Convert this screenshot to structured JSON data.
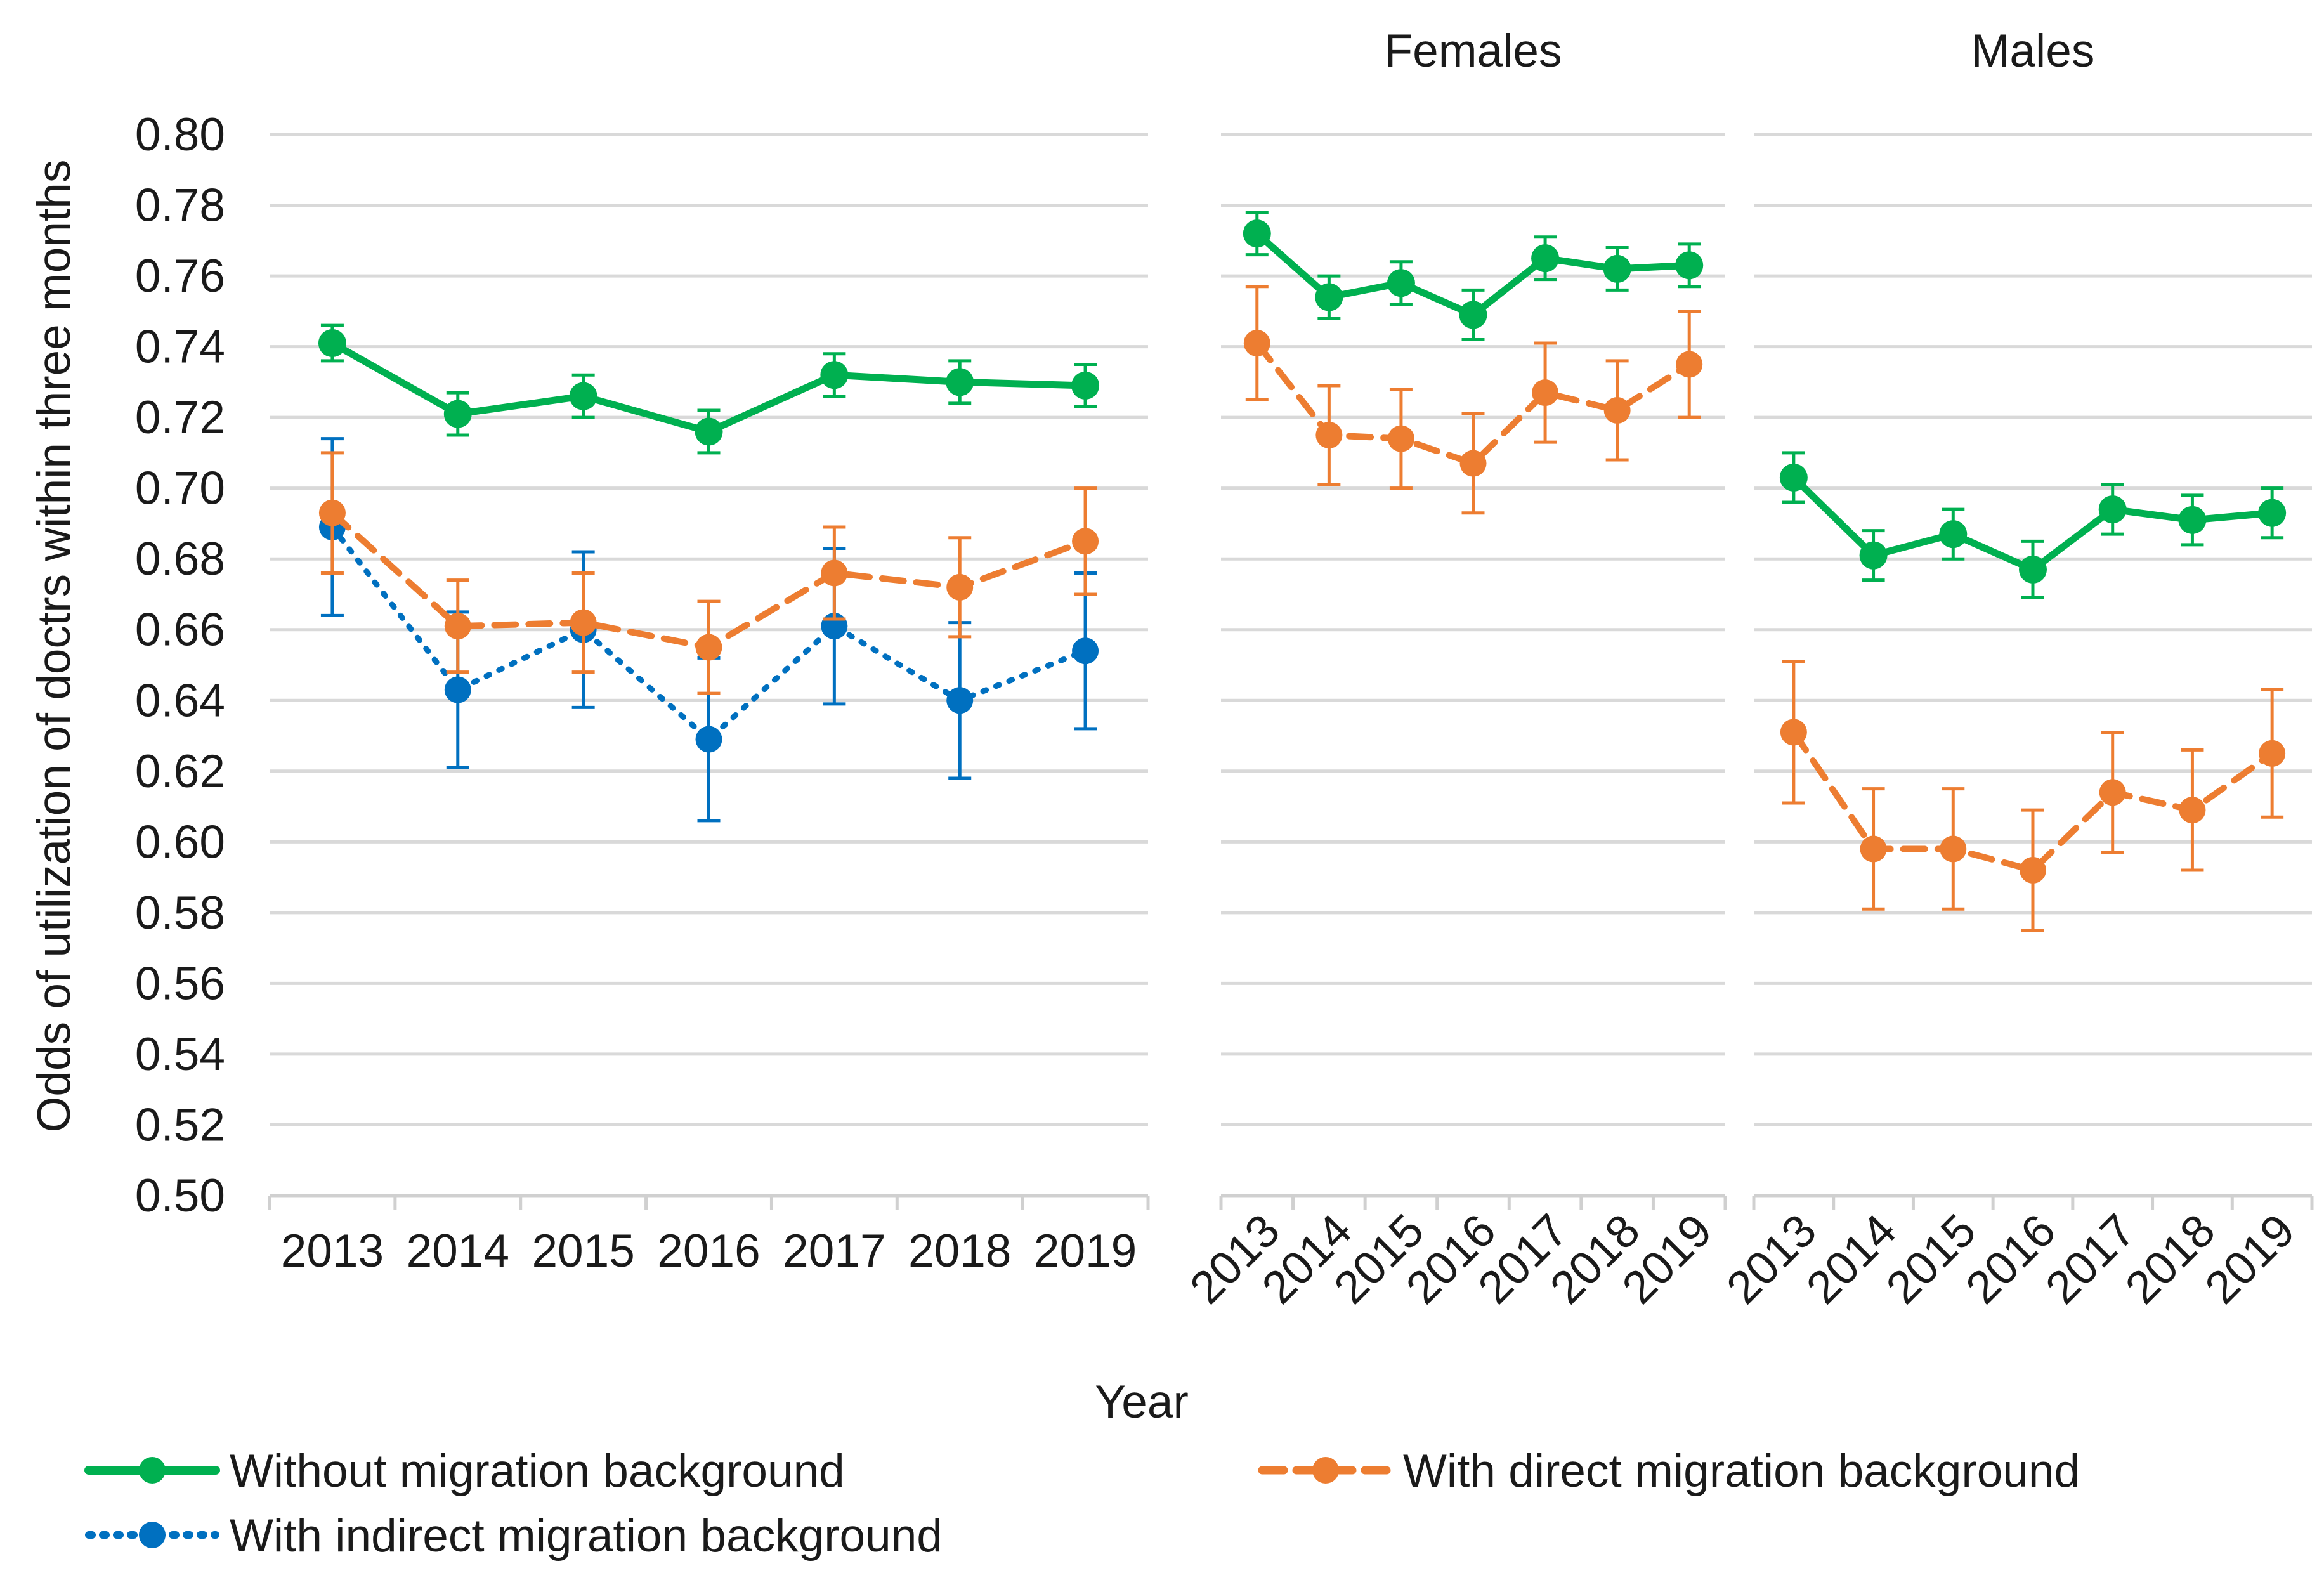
{
  "chart_data": {
    "type": "line",
    "ylabel": "Odds of utilization of doctrs within three months",
    "xlabel": "Year",
    "ylim": [
      0.5,
      0.8
    ],
    "yticks": [
      "0.50",
      "0.52",
      "0.54",
      "0.56",
      "0.58",
      "0.60",
      "0.62",
      "0.64",
      "0.66",
      "0.68",
      "0.70",
      "0.72",
      "0.74",
      "0.76",
      "0.78",
      "0.80"
    ],
    "categories": [
      "2013",
      "2014",
      "2015",
      "2016",
      "2017",
      "2018",
      "2019"
    ],
    "colors": {
      "without": "#00b050",
      "direct": "#ed7d31",
      "indirect": "#0070c0",
      "grid": "#d9d9d9"
    },
    "panels": [
      {
        "title": "",
        "series": [
          {
            "key": "without",
            "name": "Without migration background",
            "values": [
              0.741,
              0.721,
              0.726,
              0.716,
              0.732,
              0.73,
              0.729
            ],
            "err": [
              0.005,
              0.006,
              0.006,
              0.006,
              0.006,
              0.006,
              0.006
            ]
          },
          {
            "key": "direct",
            "name": "With direct migration background",
            "values": [
              0.693,
              0.661,
              0.662,
              0.655,
              0.676,
              0.672,
              0.685
            ],
            "err": [
              0.017,
              0.013,
              0.014,
              0.013,
              0.013,
              0.014,
              0.015
            ]
          },
          {
            "key": "indirect",
            "name": "With indirect migration background",
            "values": [
              0.689,
              0.643,
              0.66,
              0.629,
              0.661,
              0.64,
              0.654
            ],
            "err": [
              0.025,
              0.022,
              0.022,
              0.023,
              0.022,
              0.022,
              0.022
            ]
          }
        ]
      },
      {
        "title": "Females",
        "series": [
          {
            "key": "without",
            "name": "Without migration background",
            "values": [
              0.772,
              0.754,
              0.758,
              0.749,
              0.765,
              0.762,
              0.763
            ],
            "err": [
              0.006,
              0.006,
              0.006,
              0.007,
              0.006,
              0.006,
              0.006
            ]
          },
          {
            "key": "direct",
            "name": "With direct migration background",
            "values": [
              0.741,
              0.715,
              0.714,
              0.707,
              0.727,
              0.722,
              0.735
            ],
            "err": [
              0.016,
              0.014,
              0.014,
              0.014,
              0.014,
              0.014,
              0.015
            ]
          }
        ]
      },
      {
        "title": "Males",
        "series": [
          {
            "key": "without",
            "name": "Without migration background",
            "values": [
              0.703,
              0.681,
              0.687,
              0.677,
              0.694,
              0.691,
              0.693
            ],
            "err": [
              0.007,
              0.007,
              0.007,
              0.008,
              0.007,
              0.007,
              0.007
            ]
          },
          {
            "key": "direct",
            "name": "With direct migration background",
            "values": [
              0.631,
              0.598,
              0.598,
              0.592,
              0.614,
              0.609,
              0.625
            ],
            "err": [
              0.02,
              0.017,
              0.017,
              0.017,
              0.017,
              0.017,
              0.018
            ]
          }
        ]
      }
    ],
    "legend": [
      {
        "key": "without",
        "label": "Without migration background"
      },
      {
        "key": "direct",
        "label": "With direct migration background"
      },
      {
        "key": "indirect",
        "label": "With indirect migration background"
      }
    ]
  }
}
